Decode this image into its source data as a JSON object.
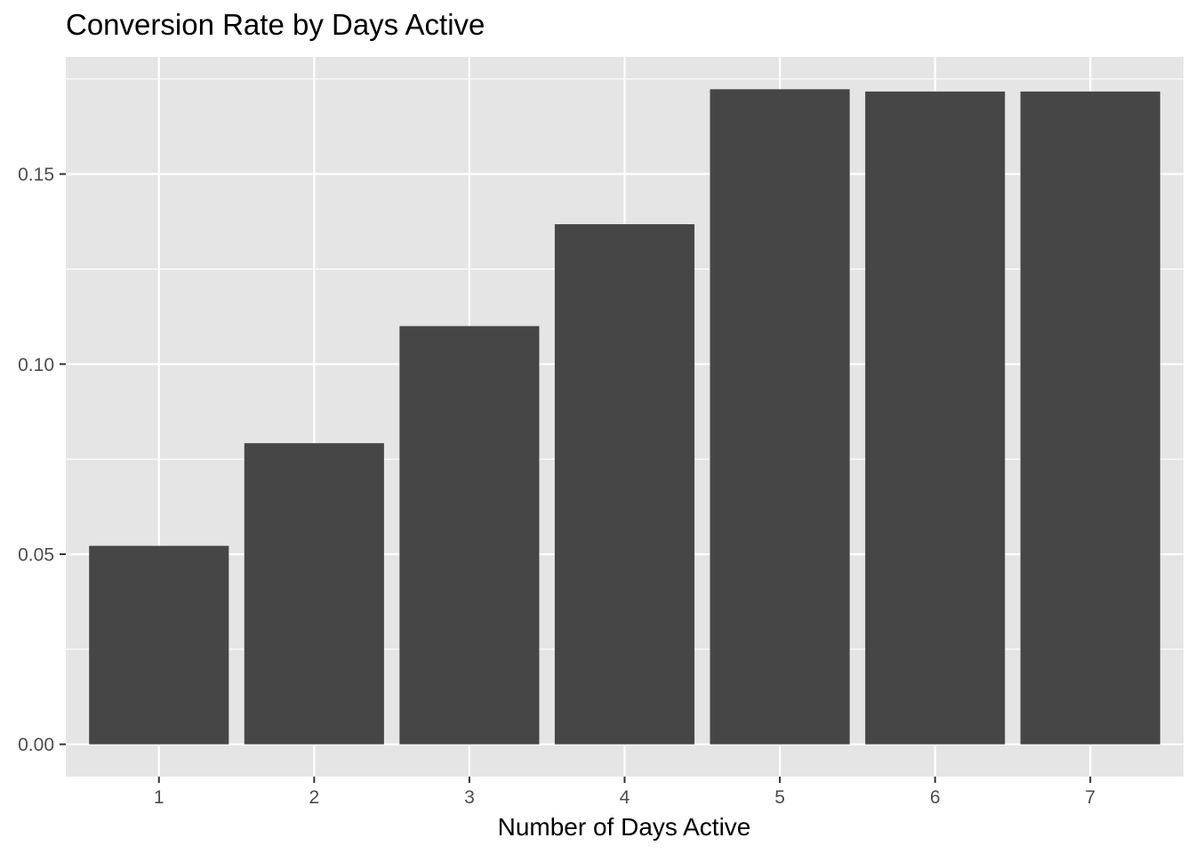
{
  "chart_data": {
    "type": "bar",
    "title": "Conversion Rate by Days Active",
    "xlabel": "Number of Days Active",
    "ylabel": "",
    "categories": [
      "1",
      "2",
      "3",
      "4",
      "5",
      "6",
      "7"
    ],
    "values": [
      0.0522,
      0.0792,
      0.11,
      0.1368,
      0.1723,
      0.1717,
      0.1717
    ],
    "ylim": [
      -0.0085,
      0.1808
    ],
    "y_ticks": [
      0.0,
      0.05,
      0.1,
      0.15
    ],
    "y_tick_labels": [
      "0.00",
      "0.05",
      "0.10",
      "0.15"
    ],
    "grid": true,
    "legend": "none"
  },
  "colors": {
    "panel_background": "#e5e5e5",
    "grid_major": "#ffffff",
    "bar_fill": "#464646",
    "tick_mark": "#333333",
    "tick_text": "#4d4d4d",
    "text": "#000000"
  }
}
